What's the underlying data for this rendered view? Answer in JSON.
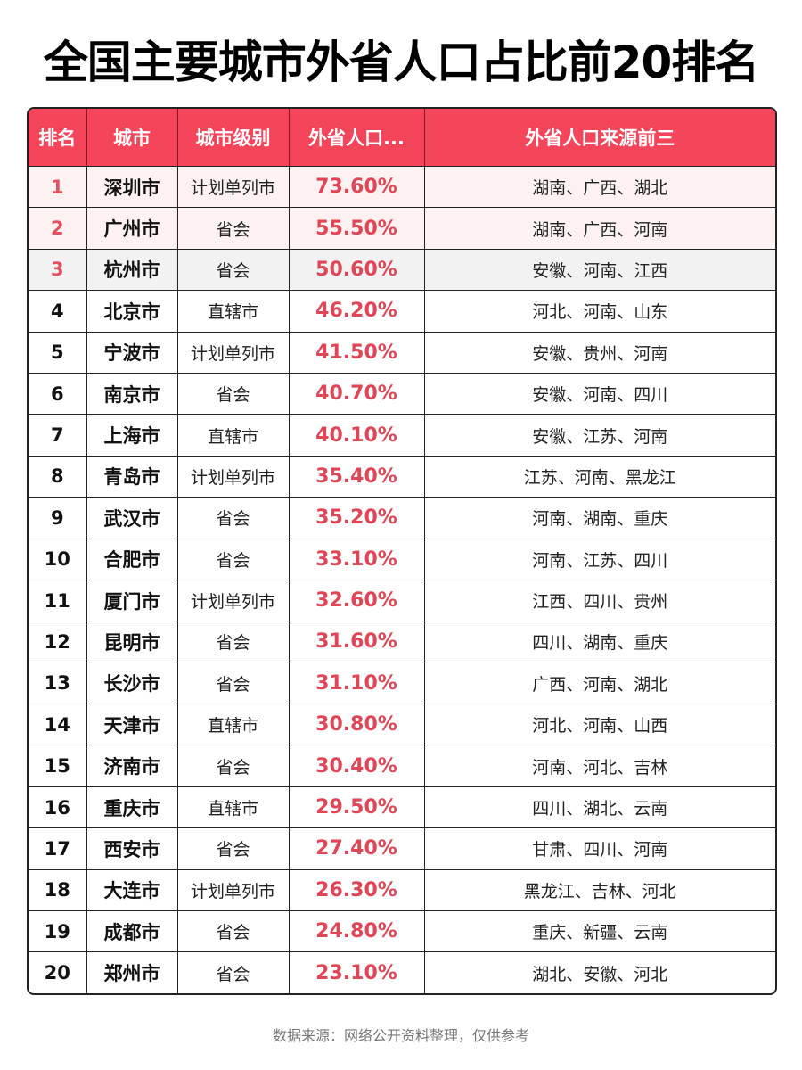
{
  "title": "全国主要城市外省人口占比前20排名",
  "table": {
    "headers": {
      "rank": "排名",
      "city": "城市",
      "level": "城市级别",
      "pct": "外省人口...",
      "src": "外省人口来源前三"
    },
    "rows": [
      {
        "rank": "1",
        "city": "深圳市",
        "level": "计划单列市",
        "pct": "73.60%",
        "src": "湖南、广西、湖北"
      },
      {
        "rank": "2",
        "city": "广州市",
        "level": "省会",
        "pct": "55.50%",
        "src": "湖南、广西、河南"
      },
      {
        "rank": "3",
        "city": "杭州市",
        "level": "省会",
        "pct": "50.60%",
        "src": "安徽、河南、江西"
      },
      {
        "rank": "4",
        "city": "北京市",
        "level": "直辖市",
        "pct": "46.20%",
        "src": "河北、河南、山东"
      },
      {
        "rank": "5",
        "city": "宁波市",
        "level": "计划单列市",
        "pct": "41.50%",
        "src": "安徽、贵州、河南"
      },
      {
        "rank": "6",
        "city": "南京市",
        "level": "省会",
        "pct": "40.70%",
        "src": "安徽、河南、四川"
      },
      {
        "rank": "7",
        "city": "上海市",
        "level": "直辖市",
        "pct": "40.10%",
        "src": "安徽、江苏、河南"
      },
      {
        "rank": "8",
        "city": "青岛市",
        "level": "计划单列市",
        "pct": "35.40%",
        "src": "江苏、河南、黑龙江"
      },
      {
        "rank": "9",
        "city": "武汉市",
        "level": "省会",
        "pct": "35.20%",
        "src": "河南、湖南、重庆"
      },
      {
        "rank": "10",
        "city": "合肥市",
        "level": "省会",
        "pct": "33.10%",
        "src": "河南、江苏、四川"
      },
      {
        "rank": "11",
        "city": "厦门市",
        "level": "计划单列市",
        "pct": "32.60%",
        "src": "江西、四川、贵州"
      },
      {
        "rank": "12",
        "city": "昆明市",
        "level": "省会",
        "pct": "31.60%",
        "src": "四川、湖南、重庆"
      },
      {
        "rank": "13",
        "city": "长沙市",
        "level": "省会",
        "pct": "31.10%",
        "src": "广西、河南、湖北"
      },
      {
        "rank": "14",
        "city": "天津市",
        "level": "直辖市",
        "pct": "30.80%",
        "src": "河北、河南、山西"
      },
      {
        "rank": "15",
        "city": "济南市",
        "level": "省会",
        "pct": "30.40%",
        "src": "河南、河北、吉林"
      },
      {
        "rank": "16",
        "city": "重庆市",
        "level": "直辖市",
        "pct": "29.50%",
        "src": "四川、湖北、云南"
      },
      {
        "rank": "17",
        "city": "西安市",
        "level": "省会",
        "pct": "27.40%",
        "src": "甘肃、四川、河南"
      },
      {
        "rank": "18",
        "city": "大连市",
        "level": "计划单列市",
        "pct": "26.30%",
        "src": "黑龙江、吉林、河北"
      },
      {
        "rank": "19",
        "city": "成都市",
        "level": "省会",
        "pct": "24.80%",
        "src": "重庆、新疆、云南"
      },
      {
        "rank": "20",
        "city": "郑州市",
        "level": "省会",
        "pct": "23.10%",
        "src": "湖北、安徽、河北"
      }
    ]
  },
  "footer": "数据来源：网络公开资料整理，仅供参考",
  "colors": {
    "header_bg": "#f4455a",
    "pct_text": "#e14657",
    "top_rank_text": "#e0525f",
    "top_row_pink": "#fdf1f1",
    "top_row_gray": "#f2f2f2"
  }
}
